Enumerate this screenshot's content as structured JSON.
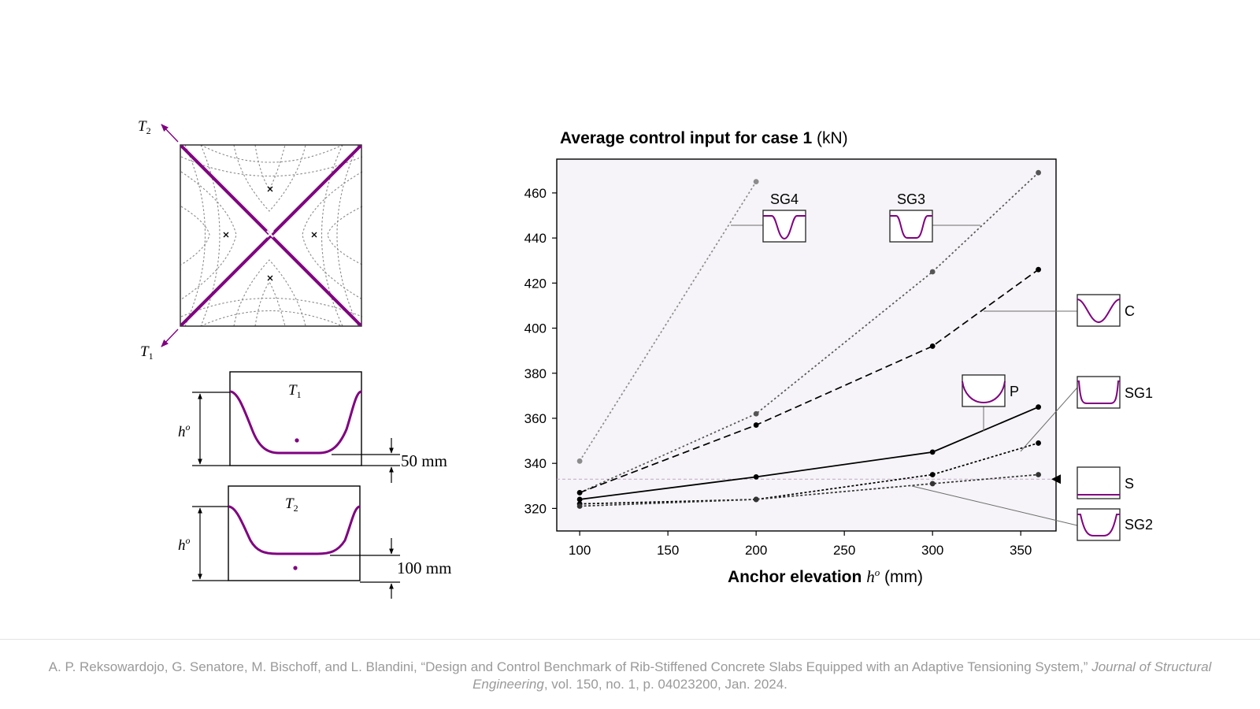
{
  "diagram": {
    "t2_label": "T",
    "t2_sub": "2",
    "t1_label": "T",
    "t1_sub": "1",
    "section1": {
      "title": "T",
      "title_sub": "1",
      "height_label": "h",
      "height_sup": "o",
      "offset_label": "50 mm"
    },
    "section2": {
      "title": "T",
      "title_sub": "2",
      "height_label": "h",
      "height_sup": "o",
      "offset_label": "100 mm"
    }
  },
  "colors": {
    "accent": "#800080",
    "plot_bg": "#f6f4f8",
    "grey_series": "#8c8c8c",
    "dark_series": "#000000",
    "reference_line": "#b9a9c0"
  },
  "chart_data": {
    "type": "line",
    "title": "Average control input for case 1",
    "title_unit": "(kN)",
    "xlabel": "Anchor elevation",
    "xlabel_symbol": "h",
    "xlabel_symbol_sup": "o",
    "xlabel_unit": "(mm)",
    "xlim": [
      87,
      370
    ],
    "ylim": [
      310,
      475
    ],
    "x_ticks": [
      100,
      150,
      200,
      250,
      300,
      350
    ],
    "y_ticks": [
      320,
      340,
      360,
      380,
      400,
      420,
      440,
      460
    ],
    "reference_value": 333,
    "series": [
      {
        "name": "SG4",
        "style": "dotted",
        "color": "#8c8c8c",
        "x": [
          100,
          200
        ],
        "y": [
          341,
          465
        ]
      },
      {
        "name": "SG3",
        "style": "dotted",
        "color": "#555555",
        "x": [
          100,
          200,
          300,
          360
        ],
        "y": [
          327,
          362,
          425,
          469
        ]
      },
      {
        "name": "C",
        "style": "dashed",
        "color": "#000000",
        "x": [
          100,
          200,
          300,
          360
        ],
        "y": [
          327,
          357,
          392,
          426
        ]
      },
      {
        "name": "P",
        "style": "solid",
        "color": "#000000",
        "x": [
          100,
          200,
          300,
          360
        ],
        "y": [
          324,
          334,
          345,
          365
        ]
      },
      {
        "name": "SG1",
        "style": "densedot",
        "color": "#000000",
        "x": [
          100,
          200,
          300,
          360
        ],
        "y": [
          322,
          324,
          335,
          349
        ]
      },
      {
        "name": "SG2",
        "style": "densedot",
        "color": "#333333",
        "x": [
          100,
          200,
          300,
          360
        ],
        "y": [
          321,
          324,
          331,
          335
        ]
      },
      {
        "name": "S",
        "style": "reference",
        "color": "#b9a9c0",
        "x": [
          87,
          370
        ],
        "y": [
          333,
          333
        ]
      }
    ]
  },
  "citation": {
    "authors": "A. P. Reksowardojo, G. Senatore, M. Bischoff, and L. Blandini, “Design and Control Benchmark of Rib-Stiffened Concrete Slabs Equipped with an Adaptive Tensioning System,”",
    "journal": "Journal of Structural Engineering",
    "details": ", vol. 150, no. 1, p. 04023200, Jan. 2024."
  }
}
